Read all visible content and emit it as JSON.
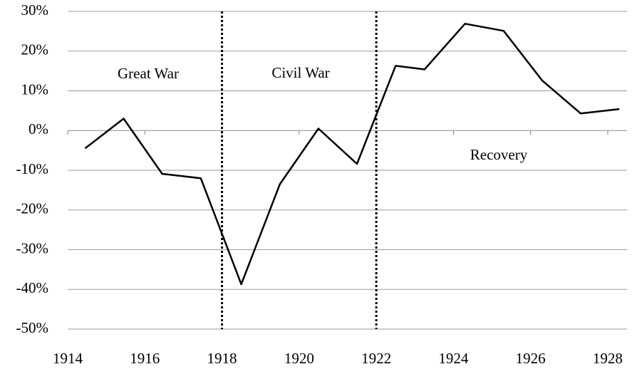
{
  "chart_data": {
    "type": "line",
    "x": [
      1914.45,
      1915.45,
      1916.45,
      1917.45,
      1918.5,
      1919.5,
      1920.5,
      1921.5,
      1922.5,
      1923.25,
      1924.3,
      1925.3,
      1926.3,
      1927.3,
      1928.3
    ],
    "values": [
      -4.5,
      3,
      -10.9,
      -12,
      -38.7,
      -13.5,
      0.5,
      -8.4,
      16.3,
      15.4,
      26.9,
      25.1,
      12.6,
      4.3,
      5.4
    ],
    "color": "#000000",
    "xlim": [
      1914,
      1928.5
    ],
    "xticks": [
      1914,
      1916,
      1918,
      1920,
      1922,
      1924,
      1926,
      1928
    ],
    "ylim": [
      -50,
      30
    ],
    "yticks": [
      {
        "value": -50,
        "label": "-50%"
      },
      {
        "value": -40,
        "label": "-40%"
      },
      {
        "value": -30,
        "label": "-30%"
      },
      {
        "value": -20,
        "label": "-20%"
      },
      {
        "value": -10,
        "label": "-10%"
      },
      {
        "value": 0,
        "label": "0%"
      },
      {
        "value": 10,
        "label": "10%"
      },
      {
        "value": 20,
        "label": "20%"
      },
      {
        "value": 30,
        "label": "30%"
      }
    ],
    "grid": true,
    "vlines": [
      1918,
      1922
    ],
    "annotations": [
      "Great War",
      "Civil War",
      "Recovery"
    ]
  }
}
